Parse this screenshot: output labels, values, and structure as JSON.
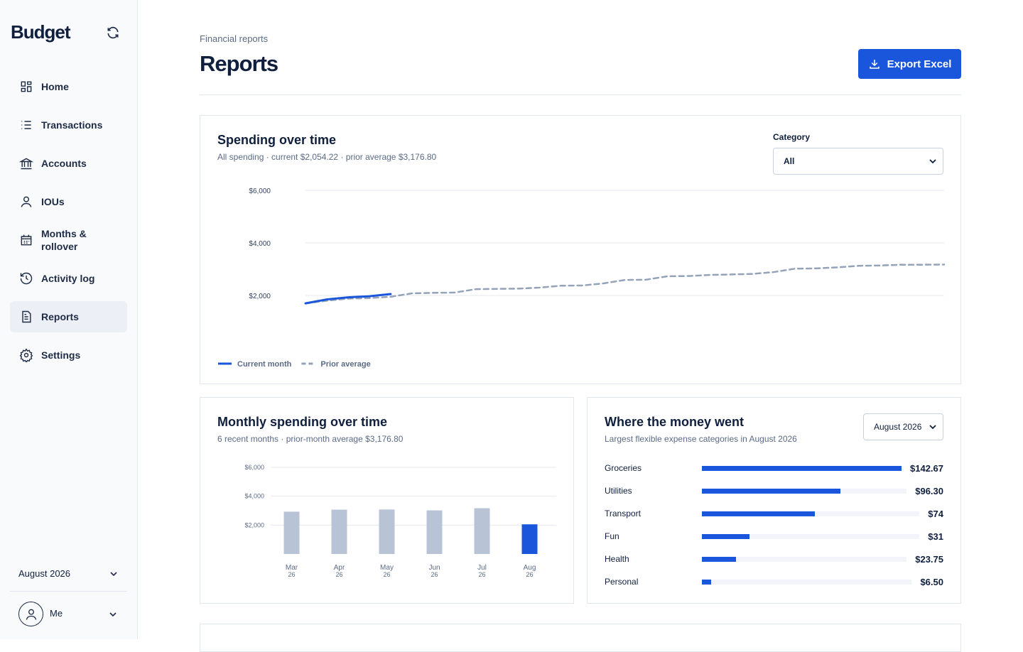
{
  "sidebar": {
    "brand": "Budget",
    "nav": [
      "Home",
      "Transactions",
      "Accounts",
      "IOUs",
      "Months & rollover",
      "Activity log",
      "Reports",
      "Settings"
    ],
    "month": "August 2026",
    "user": "Me"
  },
  "header": {
    "breadcrumb": "Financial reports",
    "title": "Reports",
    "export_button": "Export Excel"
  },
  "spending_card": {
    "title": "Spending over time",
    "subtitle": "All spending · current $2,054.22 · prior average $3,176.80",
    "filter_label": "Category",
    "filter_value": "All",
    "chart_data": {
      "type": "line",
      "x": [
        1,
        2,
        3,
        4,
        5,
        6,
        7,
        8,
        9,
        10,
        11,
        12,
        13,
        14,
        15,
        16,
        17,
        18,
        19,
        20,
        21,
        22,
        23,
        24,
        25,
        26,
        27,
        28,
        29,
        30,
        31
      ],
      "xlim": [
        1,
        31
      ],
      "ylim": [
        0,
        6000
      ],
      "yticks": [
        {
          "value": 2000,
          "label": "$2,000"
        },
        {
          "value": 4000,
          "label": "$4,000"
        },
        {
          "value": 6000,
          "label": "$6,000"
        }
      ],
      "grid": true,
      "series": [
        {
          "name": "Current month",
          "color": "#1a56db",
          "line_style": "solid",
          "values": [
            1700,
            1850,
            1930,
            1970,
            2054.22,
            null,
            null,
            null,
            null,
            null,
            null,
            null,
            null,
            null,
            null,
            null,
            null,
            null,
            null,
            null,
            null,
            null,
            null,
            null,
            null,
            null,
            null,
            null,
            null,
            null,
            null
          ]
        },
        {
          "name": "Prior average",
          "color": "#94a3b8",
          "line_style": "dashed",
          "values": [
            1700,
            1800,
            1880,
            1900,
            1950,
            2080,
            2100,
            2110,
            2240,
            2250,
            2260,
            2300,
            2370,
            2380,
            2460,
            2590,
            2600,
            2730,
            2740,
            2780,
            2800,
            2820,
            2890,
            3020,
            3030,
            3070,
            3130,
            3140,
            3170,
            3170,
            3176.8
          ]
        }
      ]
    }
  },
  "monthly_card": {
    "title": "Monthly spending over time",
    "subtitle": "6 recent months · prior-month average $3,176.80",
    "chart_data": {
      "type": "bar",
      "categories": [
        "Mar",
        "Apr",
        "May",
        "Jun",
        "Jul",
        "Aug"
      ],
      "category_years": [
        "26",
        "26",
        "26",
        "26",
        "26",
        "26"
      ],
      "values": [
        2930,
        3070,
        3080,
        3020,
        3170,
        2054.22
      ],
      "colors": [
        "#b8c4d6",
        "#b8c4d6",
        "#b8c4d6",
        "#b8c4d6",
        "#b8c4d6",
        "#1a56db"
      ],
      "ylim": [
        0,
        6000
      ],
      "yticks": [
        {
          "value": 2000,
          "label": "$2,000"
        },
        {
          "value": 4000,
          "label": "$4,000"
        },
        {
          "value": 6000,
          "label": "$6,000"
        }
      ],
      "grid": true
    }
  },
  "categories_card": {
    "title": "Where the money went",
    "subtitle": "Largest flexible expense categories in August 2026",
    "period": "August 2026",
    "chart_data": {
      "type": "hbar",
      "categories": [
        "Groceries",
        "Utilities",
        "Transport",
        "Fun",
        "Health",
        "Personal"
      ],
      "values": [
        142.67,
        96.3,
        74,
        31,
        23.75,
        6.5
      ],
      "value_labels": [
        "$142.67",
        "$96.30",
        "$74",
        "$31",
        "$23.75",
        "$6.50"
      ],
      "xlim": [
        0,
        142.67
      ],
      "color": "#1a56db"
    }
  }
}
